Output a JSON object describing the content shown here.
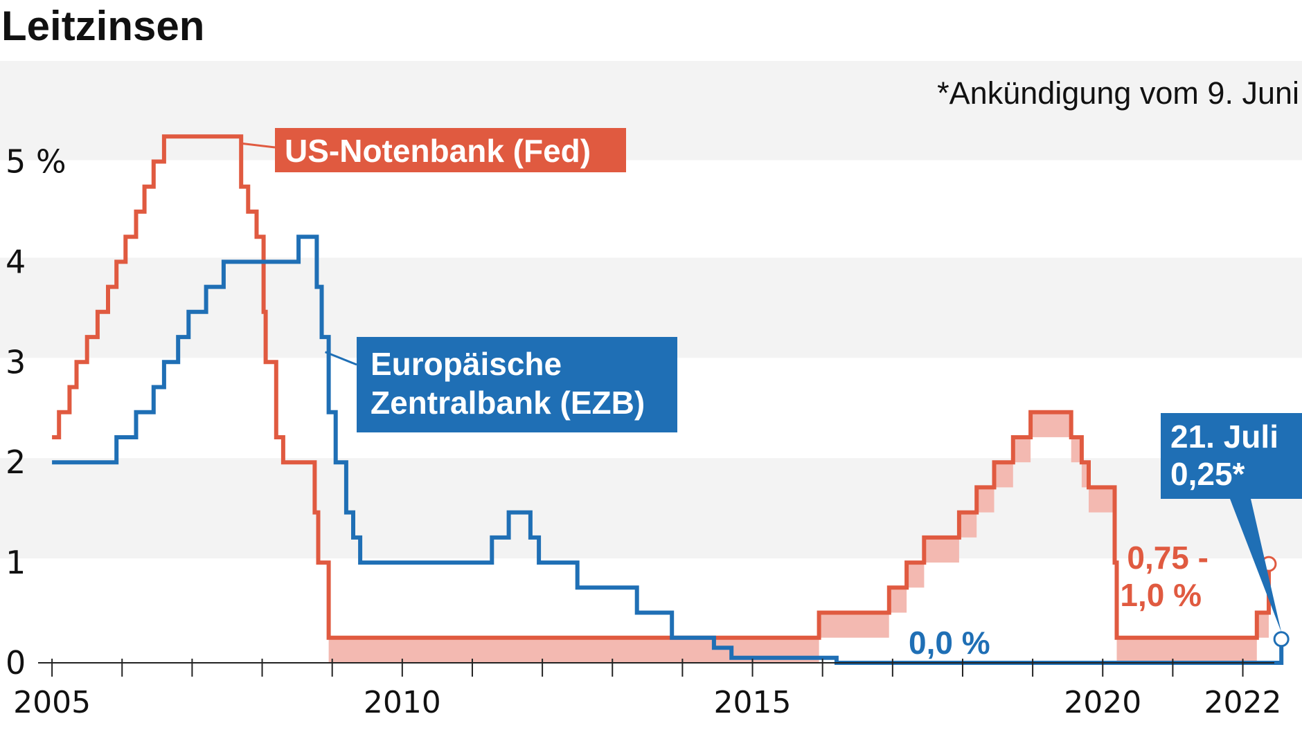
{
  "colors": {
    "fed": "#e05a40",
    "ecb": "#1f6fb5",
    "fed_fill": "#f3b9b1",
    "band": "#f3f3f3",
    "axis": "#222222"
  },
  "chart_data": {
    "type": "line",
    "title": "Leitzinsen",
    "note": "*Ankündigung vom 9. Juni",
    "xlim": [
      2004.9,
      2022.4
    ],
    "ylim": [
      0,
      5.3
    ],
    "y_ticks": [
      {
        "value": 0,
        "label": "0"
      },
      {
        "value": 1,
        "label": "1"
      },
      {
        "value": 2,
        "label": "2"
      },
      {
        "value": 3,
        "label": "3"
      },
      {
        "value": 4,
        "label": "4"
      },
      {
        "value": 5,
        "label": "5 %"
      }
    ],
    "x_tick_labels": [
      {
        "value": 2005,
        "label": "2005"
      },
      {
        "value": 2010,
        "label": "2010"
      },
      {
        "value": 2015,
        "label": "2015"
      },
      {
        "value": 2020,
        "label": "2020"
      },
      {
        "value": 2022,
        "label": "2022"
      }
    ],
    "x_ticks_minor": [
      2005,
      2006,
      2007,
      2008,
      2009,
      2010,
      2011,
      2012,
      2013,
      2014,
      2015,
      2016,
      2017,
      2018,
      2019,
      2020,
      2021,
      2022
    ],
    "grid": "horizontal bands",
    "series": [
      {
        "name": "US-Notenbank (Fed)",
        "key": "fed",
        "step": true,
        "range_width": 0.25,
        "points": [
          [
            2005.0,
            2.25
          ],
          [
            2005.1,
            2.5
          ],
          [
            2005.25,
            2.75
          ],
          [
            2005.35,
            3.0
          ],
          [
            2005.5,
            3.25
          ],
          [
            2005.65,
            3.5
          ],
          [
            2005.8,
            3.75
          ],
          [
            2005.92,
            4.0
          ],
          [
            2006.05,
            4.25
          ],
          [
            2006.2,
            4.5
          ],
          [
            2006.32,
            4.75
          ],
          [
            2006.45,
            5.0
          ],
          [
            2006.6,
            5.25
          ],
          [
            2007.7,
            4.75
          ],
          [
            2007.8,
            4.5
          ],
          [
            2007.92,
            4.25
          ],
          [
            2008.02,
            3.5
          ],
          [
            2008.05,
            3.0
          ],
          [
            2008.2,
            2.25
          ],
          [
            2008.3,
            2.0
          ],
          [
            2008.75,
            1.5
          ],
          [
            2008.8,
            1.0
          ],
          [
            2008.95,
            0.25
          ],
          [
            2015.95,
            0.5
          ],
          [
            2016.95,
            0.75
          ],
          [
            2017.2,
            1.0
          ],
          [
            2017.45,
            1.25
          ],
          [
            2017.95,
            1.5
          ],
          [
            2018.2,
            1.75
          ],
          [
            2018.45,
            2.0
          ],
          [
            2018.72,
            2.25
          ],
          [
            2018.97,
            2.5
          ],
          [
            2019.55,
            2.25
          ],
          [
            2019.7,
            2.0
          ],
          [
            2019.8,
            1.75
          ],
          [
            2020.17,
            1.0
          ],
          [
            2020.2,
            0.25
          ],
          [
            2022.2,
            0.5
          ],
          [
            2022.37,
            1.0
          ],
          [
            2022.37,
            1.0
          ]
        ]
      },
      {
        "name": "Europäische Zentralbank (EZB)",
        "key": "ecb",
        "step": true,
        "points": [
          [
            2005.0,
            2.0
          ],
          [
            2005.92,
            2.25
          ],
          [
            2006.2,
            2.5
          ],
          [
            2006.45,
            2.75
          ],
          [
            2006.6,
            3.0
          ],
          [
            2006.8,
            3.25
          ],
          [
            2006.95,
            3.5
          ],
          [
            2007.2,
            3.75
          ],
          [
            2007.45,
            4.0
          ],
          [
            2008.52,
            4.25
          ],
          [
            2008.78,
            3.75
          ],
          [
            2008.85,
            3.25
          ],
          [
            2008.95,
            2.5
          ],
          [
            2009.05,
            2.0
          ],
          [
            2009.2,
            1.5
          ],
          [
            2009.3,
            1.25
          ],
          [
            2009.4,
            1.0
          ],
          [
            2011.28,
            1.25
          ],
          [
            2011.52,
            1.5
          ],
          [
            2011.83,
            1.25
          ],
          [
            2011.95,
            1.0
          ],
          [
            2012.5,
            0.75
          ],
          [
            2013.35,
            0.5
          ],
          [
            2013.85,
            0.25
          ],
          [
            2014.45,
            0.15
          ],
          [
            2014.7,
            0.05
          ],
          [
            2016.2,
            0.0
          ],
          [
            2022.55,
            0.0
          ],
          [
            2022.55,
            0.25
          ]
        ]
      }
    ],
    "annotations": {
      "fed_last_label": [
        "0,75 -",
        "1,0 %"
      ],
      "ecb_zero_label": "0,0 %",
      "ecb_next_label": [
        "21. Juli",
        "0,25*"
      ]
    }
  }
}
